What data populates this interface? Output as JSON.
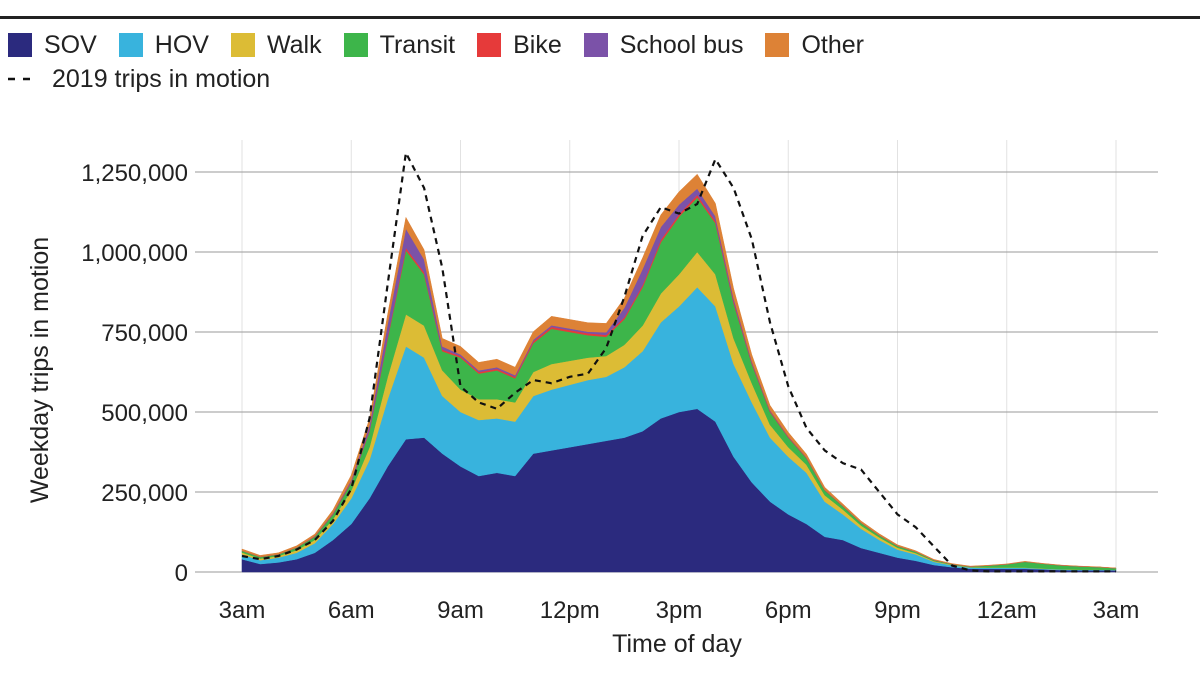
{
  "legend": {
    "items": [
      {
        "label": "SOV",
        "color": "#2b2a7e"
      },
      {
        "label": "HOV",
        "color": "#38b3dd"
      },
      {
        "label": "Walk",
        "color": "#dcbc35"
      },
      {
        "label": "Transit",
        "color": "#3db54a"
      },
      {
        "label": "Bike",
        "color": "#e63a3a"
      },
      {
        "label": "School bus",
        "color": "#7b52a8"
      },
      {
        "label": "Other",
        "color": "#dd8236"
      }
    ],
    "line_label": "2019 trips in motion"
  },
  "chart_data": {
    "type": "area",
    "stacked": true,
    "xlabel": "Time of day",
    "ylabel": "Weekday trips in motion",
    "x_ticks": [
      "3am",
      "6am",
      "9am",
      "12pm",
      "3pm",
      "6pm",
      "9pm",
      "12am",
      "3am"
    ],
    "y_ticks": [
      "0",
      "250,000",
      "500,000",
      "750,000",
      "1,000,000",
      "1,250,000"
    ],
    "ylim": [
      0,
      1350000
    ],
    "x_unit": "hours since 3am",
    "xlim": [
      0,
      24
    ],
    "grid": true,
    "x": [
      0,
      0.5,
      1,
      1.5,
      2,
      2.5,
      3,
      3.5,
      4,
      4.5,
      5,
      5.5,
      6,
      6.5,
      7,
      7.5,
      8,
      8.5,
      9,
      9.5,
      10,
      10.5,
      11,
      11.5,
      12,
      12.5,
      13,
      13.5,
      14,
      14.5,
      15,
      15.5,
      16,
      16.5,
      17,
      17.5,
      18,
      18.5,
      19,
      19.5,
      20,
      20.5,
      21,
      21.5,
      22,
      22.5,
      23,
      23.5,
      24
    ],
    "series": [
      {
        "name": "SOV",
        "color": "#2b2a7e",
        "values": [
          40000,
          25000,
          30000,
          40000,
          60000,
          100000,
          150000,
          230000,
          330000,
          415000,
          420000,
          370000,
          330000,
          300000,
          310000,
          300000,
          370000,
          380000,
          390000,
          400000,
          410000,
          420000,
          440000,
          480000,
          500000,
          510000,
          470000,
          360000,
          280000,
          220000,
          180000,
          150000,
          110000,
          100000,
          75000,
          60000,
          45000,
          35000,
          22000,
          15000,
          10000,
          10000,
          10000,
          10000,
          8000,
          6000,
          5000,
          5000,
          5000
        ]
      },
      {
        "name": "HOV",
        "color": "#38b3dd",
        "values": [
          15000,
          12000,
          15000,
          20000,
          30000,
          50000,
          80000,
          120000,
          210000,
          290000,
          250000,
          180000,
          170000,
          175000,
          170000,
          170000,
          180000,
          190000,
          195000,
          200000,
          200000,
          220000,
          250000,
          300000,
          330000,
          380000,
          360000,
          290000,
          250000,
          200000,
          180000,
          160000,
          110000,
          80000,
          60000,
          40000,
          25000,
          20000,
          10000,
          6000,
          4000,
          3000,
          3000,
          3000,
          2000,
          2000,
          2000,
          2000,
          1500
        ]
      },
      {
        "name": "Walk",
        "color": "#dcbc35",
        "values": [
          6000,
          5000,
          5000,
          8000,
          10000,
          15000,
          25000,
          40000,
          70000,
          100000,
          100000,
          80000,
          70000,
          65000,
          60000,
          60000,
          75000,
          80000,
          75000,
          70000,
          65000,
          70000,
          80000,
          90000,
          100000,
          110000,
          100000,
          80000,
          60000,
          40000,
          30000,
          25000,
          20000,
          15000,
          10000,
          8000,
          6000,
          4000,
          2000,
          1500,
          1000,
          1000,
          1000,
          1000,
          800,
          600,
          500,
          500,
          400
        ]
      },
      {
        "name": "Transit",
        "color": "#3db54a",
        "values": [
          5000,
          5000,
          5000,
          8000,
          10000,
          15000,
          25000,
          50000,
          120000,
          200000,
          160000,
          60000,
          100000,
          80000,
          90000,
          75000,
          90000,
          110000,
          90000,
          70000,
          60000,
          80000,
          120000,
          160000,
          180000,
          170000,
          160000,
          110000,
          60000,
          40000,
          30000,
          20000,
          15000,
          10000,
          8000,
          6000,
          5000,
          4000,
          3000,
          2000,
          2000,
          6000,
          10000,
          18000,
          15000,
          12000,
          10000,
          8000,
          5000
        ]
      },
      {
        "name": "Bike",
        "color": "#e63a3a",
        "values": [
          1000,
          1000,
          1000,
          1000,
          1500,
          2000,
          3000,
          4000,
          6000,
          8000,
          7000,
          5000,
          5000,
          5000,
          5000,
          5000,
          6000,
          6000,
          6000,
          6000,
          6000,
          6000,
          7000,
          8000,
          8000,
          8000,
          7000,
          6000,
          4000,
          3000,
          2500,
          2000,
          1500,
          1000,
          1000,
          800,
          600,
          500,
          300,
          200,
          200,
          200,
          200,
          200,
          100,
          100,
          100,
          100,
          100
        ]
      },
      {
        "name": "School bus",
        "color": "#7b52a8",
        "values": [
          0,
          0,
          0,
          0,
          1000,
          2000,
          5000,
          15000,
          40000,
          60000,
          40000,
          10000,
          5000,
          5000,
          5000,
          5000,
          5000,
          5000,
          5000,
          5000,
          8000,
          30000,
          50000,
          40000,
          30000,
          20000,
          15000,
          10000,
          5000,
          3000,
          2000,
          1000,
          500,
          500,
          500,
          500,
          300,
          200,
          100,
          100,
          100,
          100,
          100,
          100,
          100,
          100,
          100,
          100,
          100
        ]
      },
      {
        "name": "Other",
        "color": "#dd8236",
        "values": [
          5000,
          4000,
          4000,
          5000,
          6000,
          10000,
          15000,
          20000,
          30000,
          35000,
          30000,
          25000,
          25000,
          25000,
          25000,
          25000,
          25000,
          28000,
          28000,
          28000,
          28000,
          30000,
          35000,
          38000,
          40000,
          45000,
          40000,
          30000,
          20000,
          15000,
          12000,
          10000,
          8000,
          6000,
          5000,
          4000,
          3000,
          3000,
          2000,
          1500,
          1000,
          1000,
          1000,
          1000,
          800,
          700,
          600,
          500,
          400
        ]
      }
    ],
    "reference_line": {
      "name": "2019 trips in motion",
      "style": "dashed",
      "color": "#111111",
      "values": [
        50000,
        40000,
        50000,
        70000,
        100000,
        160000,
        260000,
        480000,
        900000,
        1310000,
        1200000,
        950000,
        580000,
        530000,
        510000,
        560000,
        600000,
        590000,
        610000,
        620000,
        700000,
        860000,
        1050000,
        1140000,
        1120000,
        1150000,
        1290000,
        1200000,
        1040000,
        780000,
        580000,
        450000,
        380000,
        340000,
        320000,
        250000,
        180000,
        140000,
        80000,
        20000,
        5000,
        2000,
        2000,
        2000,
        2000,
        2000,
        2000,
        2000,
        2000
      ]
    }
  }
}
